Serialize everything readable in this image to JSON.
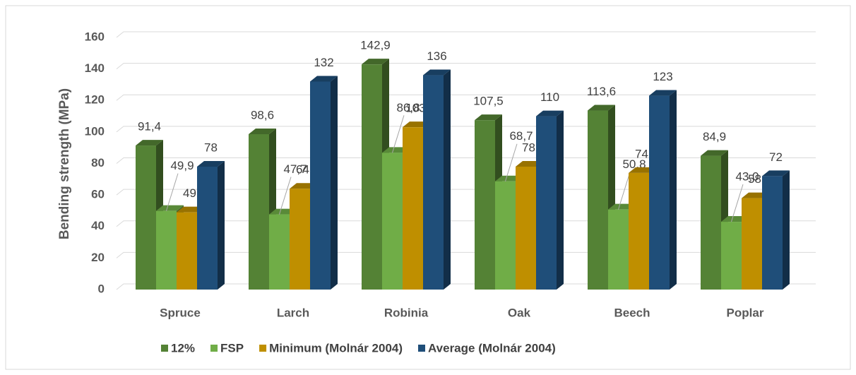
{
  "chart_data": {
    "type": "bar3d",
    "y_label": "Bending strength (MPa)",
    "categories": [
      "Spruce",
      "Larch",
      "Robinia",
      "Oak",
      "Beech",
      "Poplar"
    ],
    "series": [
      {
        "name": "12%",
        "color": "#548235",
        "values": [
          91.4,
          98.6,
          142.9,
          107.5,
          113.6,
          84.9
        ],
        "value_labels": [
          "91,4",
          "98,6",
          "142,9",
          "107,5",
          "113,6",
          "84,9"
        ]
      },
      {
        "name": "FSP",
        "color": "#70ad47",
        "values": [
          49.9,
          47.7,
          86.8,
          68.7,
          50.8,
          43.0
        ],
        "value_labels": [
          "49,9",
          "47,7",
          "86,8",
          "68,7",
          "50,8",
          "43,0"
        ]
      },
      {
        "name": "Minimum (Molnár 2004)",
        "color": "#bf8f00",
        "values": [
          49,
          64,
          103,
          78,
          74,
          58
        ]
      },
      {
        "name": "Average (Molnár 2004)",
        "color": "#1f4e79",
        "values": [
          78,
          132,
          136,
          110,
          123,
          72
        ]
      }
    ],
    "ylim": [
      0,
      160
    ],
    "yticks": [
      0,
      20,
      40,
      60,
      80,
      100,
      120,
      140,
      160
    ],
    "grid": true,
    "legend": "bottom"
  }
}
